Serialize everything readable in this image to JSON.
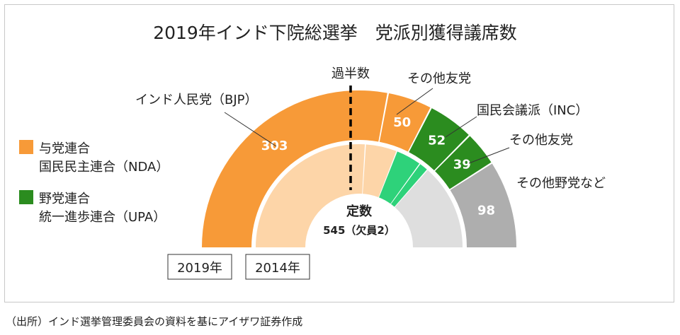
{
  "chart_data": {
    "type": "pie",
    "title": "2019年インド下院総選挙　党派別獲得議席数",
    "center_label": "定数",
    "center_sub": "545（欠員2）",
    "majority_label": "過半数",
    "majority_seats": 272,
    "total_seats": 543,
    "legend": [
      {
        "label": "与党連合",
        "sub": "国民民主連合（NDA）",
        "color": "#F79A38"
      },
      {
        "label": "野党連合",
        "sub": "統一進歩連合（UPA）",
        "color": "#2B8C1F"
      }
    ],
    "rings": [
      {
        "name": "2019年",
        "segments": [
          {
            "name": "インド人民党（BJP）",
            "value": 303,
            "color": "#F79A38",
            "label_color": "#ffffff"
          },
          {
            "name": "その他友党",
            "value": 50,
            "color": "#F79A38",
            "label_color": "#ffffff"
          },
          {
            "name": "国民会議派（INC）",
            "value": 52,
            "color": "#2B8C1F",
            "label_color": "#ffffff"
          },
          {
            "name": "その他友党",
            "value": 39,
            "color": "#2B8C1F",
            "label_color": "#ffffff"
          },
          {
            "name": "その他野党など",
            "value": 98,
            "color": "#AEAEAE",
            "label_color": "#ffffff"
          }
        ]
      },
      {
        "name": "2014年",
        "segments": [
          {
            "name": "インド人民党（BJP）",
            "value": 282,
            "color": "#FDD5A8"
          },
          {
            "name": "その他友党",
            "value": 54,
            "color": "#FDD5A8"
          },
          {
            "name": "国民会議派（INC）",
            "value": 44,
            "color": "#2ED27A"
          },
          {
            "name": "その他友党",
            "value": 16,
            "color": "#2ED27A"
          },
          {
            "name": "その他野党など",
            "value": 147,
            "color": "#DEDEDE"
          }
        ]
      }
    ]
  },
  "source": "（出所）インド選挙管理委員会の資料を基にアイザワ証券作成"
}
